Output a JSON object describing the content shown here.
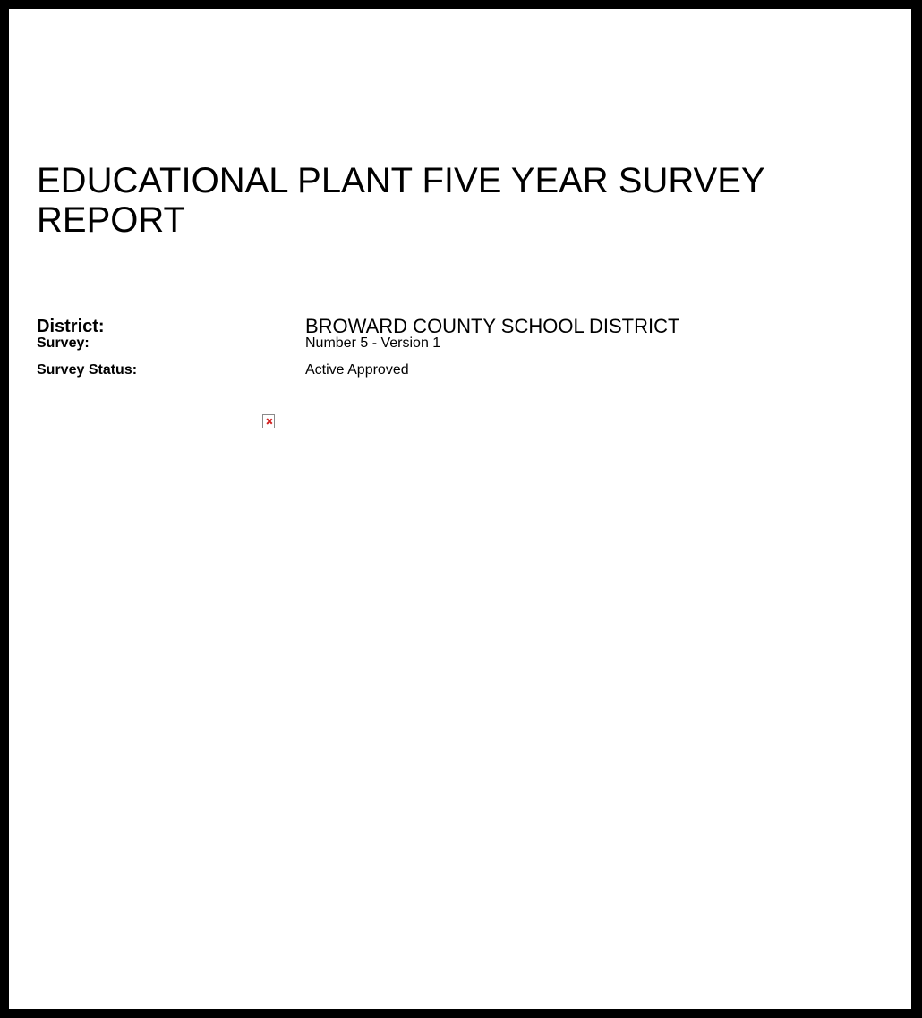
{
  "report": {
    "title": "EDUCATIONAL PLANT FIVE YEAR SURVEY REPORT"
  },
  "fields": {
    "district": {
      "label": "District:",
      "value": "BROWARD COUNTY SCHOOL DISTRICT"
    },
    "survey": {
      "label": "Survey:",
      "value": "Number 5 - Version 1"
    },
    "status": {
      "label": "Survey Status:",
      "value": "Active Approved"
    }
  },
  "colors": {
    "frame": "#000000",
    "page": "#ffffff",
    "broken_image_mark": "#d21f1f"
  },
  "icons": {
    "placeholder": "broken-image-icon"
  }
}
